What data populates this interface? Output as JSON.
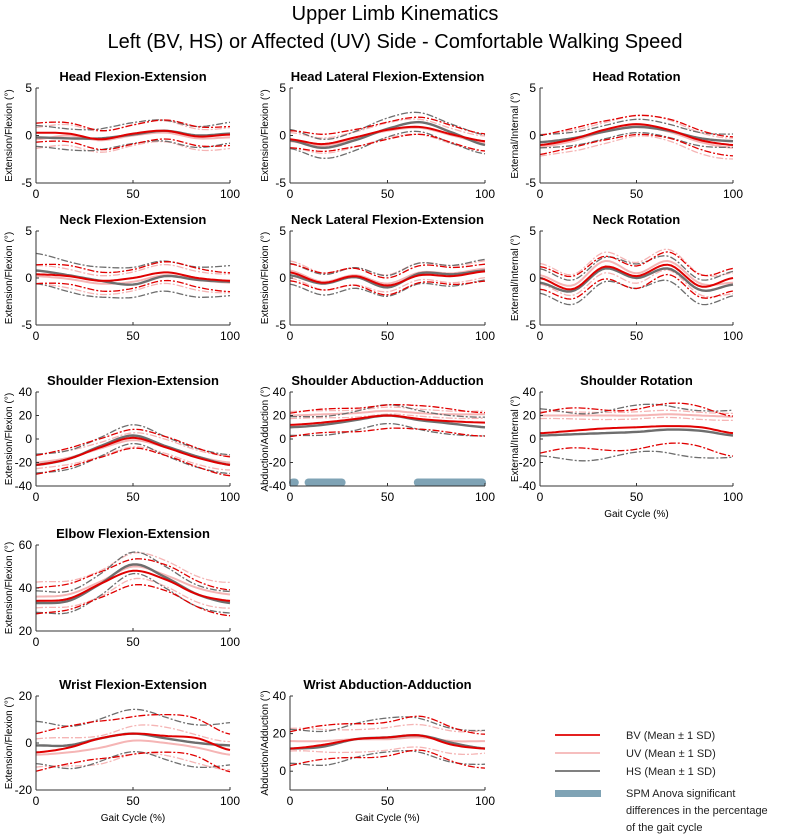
{
  "title": "Upper Limb Kinematics",
  "subtitle": "Left (BV, HS) or Affected (UV) Side - Comfortable Walking Speed",
  "colors": {
    "BV": "#e00000",
    "UV": "#f5b5b5",
    "HS": "#6e6e6e",
    "SPM": "#7fa3b5"
  },
  "legend": [
    {
      "key": "BV",
      "label": "BV (Mean ± 1 SD)"
    },
    {
      "key": "UV",
      "label": "UV (Mean ± 1 SD)"
    },
    {
      "key": "HS",
      "label": "HS (Mean ± 1 SD)"
    },
    {
      "key": "SPM",
      "label_lines": [
        "SPM Anova significant",
        "differences in the percentage",
        "of the gait cycle"
      ]
    }
  ],
  "chart_data": [
    {
      "type": "line",
      "title": "Head Flexion-Extension",
      "ylabel": "Extension/Flexion (°)",
      "xlabel": "",
      "xlim": [
        0,
        100
      ],
      "ylim": [
        -5,
        5
      ],
      "yticks": [
        -5,
        0,
        5
      ],
      "xticks": [
        0,
        50,
        100
      ],
      "x": [
        0,
        16.7,
        33.3,
        50,
        66.7,
        83.3,
        100
      ],
      "series": [
        {
          "group": "BV",
          "mean": [
            0.3,
            0.2,
            -0.4,
            0.2,
            0.5,
            -0.1,
            0.1
          ],
          "sd": 1.0
        },
        {
          "group": "UV",
          "mean": [
            -0.4,
            0,
            -0.5,
            0,
            0.3,
            -0.3,
            -0.2
          ],
          "sd": 1.1
        },
        {
          "group": "HS",
          "mean": [
            -0.2,
            -0.3,
            -0.3,
            0.1,
            0.5,
            0,
            0.2
          ],
          "sd": 1.1
        }
      ],
      "spm": []
    },
    {
      "type": "line",
      "title": "Head Lateral Flexion-Extension",
      "ylabel": "Extension/Flexion (°)",
      "xlabel": "",
      "xlim": [
        0,
        100
      ],
      "ylim": [
        -5,
        5
      ],
      "yticks": [
        -5,
        0,
        5
      ],
      "xticks": [
        0,
        50,
        100
      ],
      "x": [
        0,
        16.7,
        33.3,
        50,
        66.7,
        83.3,
        100
      ],
      "series": [
        {
          "group": "BV",
          "mean": [
            -0.4,
            -0.9,
            -0.2,
            0.6,
            0.9,
            0.1,
            -0.6
          ],
          "sd": 0.9
        },
        {
          "group": "UV",
          "mean": [
            -0.6,
            -1.1,
            -0.3,
            0.5,
            0.8,
            0,
            -0.8
          ],
          "sd": 0.8
        },
        {
          "group": "HS",
          "mean": [
            -0.5,
            -1.3,
            -0.5,
            0.7,
            1.4,
            0.3,
            -1
          ],
          "sd": 1.0
        }
      ],
      "spm": []
    },
    {
      "type": "line",
      "title": "Head Rotation",
      "ylabel": "External/Internal (°)",
      "xlabel": "",
      "xlim": [
        0,
        100
      ],
      "ylim": [
        -5,
        5
      ],
      "yticks": [
        -5,
        0,
        5
      ],
      "xticks": [
        0,
        50,
        100
      ],
      "x": [
        0,
        16.7,
        33.3,
        50,
        66.7,
        83.3,
        100
      ],
      "series": [
        {
          "group": "BV",
          "mean": [
            -1,
            -0.4,
            0.6,
            1.2,
            0.6,
            -0.5,
            -1
          ],
          "sd": 1.0
        },
        {
          "group": "UV",
          "mean": [
            -1.2,
            -0.6,
            0.4,
            1,
            0.4,
            -0.7,
            -1.3
          ],
          "sd": 1.1
        },
        {
          "group": "HS",
          "mean": [
            -0.7,
            -0.3,
            0.4,
            0.9,
            0.5,
            -0.3,
            -0.6
          ],
          "sd": 0.7
        }
      ],
      "spm": []
    },
    {
      "type": "line",
      "title": "Neck Flexion-Extension",
      "ylabel": "Extension/Flexion (°)",
      "xlabel": "",
      "xlim": [
        0,
        100
      ],
      "ylim": [
        -5,
        5
      ],
      "yticks": [
        -5,
        0,
        5
      ],
      "xticks": [
        0,
        50,
        100
      ],
      "x": [
        0,
        16.7,
        33.3,
        50,
        66.7,
        83.3,
        100
      ],
      "series": [
        {
          "group": "BV",
          "mean": [
            0.4,
            0.2,
            -0.3,
            0,
            0.6,
            0,
            -0.3
          ],
          "sd": 1.0
        },
        {
          "group": "UV",
          "mean": [
            0.2,
            -0.1,
            -0.6,
            -0.4,
            0.3,
            -0.2,
            -0.5
          ],
          "sd": 1.0
        },
        {
          "group": "HS",
          "mean": [
            0.8,
            0.3,
            -0.3,
            -0.7,
            0.2,
            -0.2,
            -0.4
          ],
          "sd": 1.6
        }
      ],
      "spm": []
    },
    {
      "type": "line",
      "title": "Neck Lateral Flexion-Extension",
      "ylabel": "Extension/Flexion (°)",
      "xlabel": "",
      "xlim": [
        0,
        100
      ],
      "ylim": [
        -5,
        5
      ],
      "yticks": [
        -5,
        0,
        5
      ],
      "xticks": [
        0,
        50,
        100
      ],
      "x": [
        0,
        16.7,
        33.3,
        50,
        66.7,
        83.3,
        100
      ],
      "series": [
        {
          "group": "BV",
          "mean": [
            0.6,
            -0.5,
            0.2,
            -0.8,
            0.3,
            0.2,
            0.7
          ],
          "sd": 0.9
        },
        {
          "group": "UV",
          "mean": [
            0.8,
            -0.4,
            0.3,
            -0.6,
            0.6,
            0.5,
            1
          ],
          "sd": 0.9
        },
        {
          "group": "HS",
          "mean": [
            0.3,
            -0.6,
            0.1,
            -1,
            0.5,
            0.4,
            0.8
          ],
          "sd": 1.1
        }
      ],
      "spm": []
    },
    {
      "type": "line",
      "title": "Neck Rotation",
      "ylabel": "External/Internal (°)",
      "xlabel": "",
      "xlim": [
        0,
        100
      ],
      "ylim": [
        -5,
        5
      ],
      "yticks": [
        -5,
        0,
        5
      ],
      "xticks": [
        0,
        50,
        100
      ],
      "x": [
        0,
        16.7,
        33.3,
        50,
        66.7,
        83.3,
        100
      ],
      "series": [
        {
          "group": "BV",
          "mean": [
            0,
            -1.2,
            1.2,
            0.2,
            1.4,
            -0.9,
            0
          ],
          "sd": 1.2
        },
        {
          "group": "UV",
          "mean": [
            0.3,
            -0.8,
            1.8,
            0.5,
            1.8,
            -0.6,
            -0.5
          ],
          "sd": 1.1
        },
        {
          "group": "HS",
          "mean": [
            -0.5,
            -1.4,
            1,
            0,
            1,
            -1.3,
            -0.7
          ],
          "sd": 1.3
        }
      ],
      "spm": []
    },
    {
      "type": "line",
      "title": "Shoulder Flexion-Extension",
      "ylabel": "Extension/Flexion (°)",
      "xlabel": "",
      "xlim": [
        0,
        100
      ],
      "ylim": [
        -40,
        40
      ],
      "yticks": [
        -40,
        -20,
        0,
        20,
        40
      ],
      "xticks": [
        0,
        50,
        100
      ],
      "x": [
        0,
        16.7,
        33.3,
        50,
        66.7,
        83.3,
        100
      ],
      "series": [
        {
          "group": "BV",
          "mean": [
            -22,
            -17,
            -7,
            1,
            -7,
            -16,
            -22
          ],
          "sd": 8
        },
        {
          "group": "UV",
          "mean": [
            -20,
            -16,
            -8,
            -1,
            -7,
            -15,
            -20
          ],
          "sd": 6
        },
        {
          "group": "HS",
          "mean": [
            -22,
            -17,
            -6,
            3,
            -6,
            -15,
            -22
          ],
          "sd": 8
        }
      ],
      "spm": []
    },
    {
      "type": "line",
      "title": "Shoulder Abduction-Adduction",
      "ylabel": "Abduction/Adduction (°)",
      "xlabel": "",
      "xlim": [
        0,
        100
      ],
      "ylim": [
        -40,
        40
      ],
      "yticks": [
        -40,
        -20,
        0,
        20,
        40
      ],
      "xticks": [
        0,
        50,
        100
      ],
      "x": [
        0,
        16.7,
        33.3,
        50,
        66.7,
        83.3,
        100
      ],
      "series": [
        {
          "group": "BV",
          "mean": [
            12,
            14,
            17,
            20,
            17,
            15,
            14
          ],
          "sd": 10
        },
        {
          "group": "UV",
          "mean": [
            20,
            21,
            22,
            24,
            22,
            21,
            21
          ],
          "sd": 3
        },
        {
          "group": "HS",
          "mean": [
            10,
            12,
            16,
            20,
            16,
            13,
            10
          ],
          "sd": 8
        }
      ],
      "spm": [
        [
          0,
          4
        ],
        [
          8,
          28
        ],
        [
          64,
          100
        ]
      ]
    },
    {
      "type": "line",
      "title": "Shoulder Rotation",
      "ylabel": "External/Internal (°)",
      "xlabel": "Gait Cycle (%)",
      "xlim": [
        0,
        100
      ],
      "ylim": [
        -40,
        40
      ],
      "yticks": [
        -40,
        -20,
        0,
        20,
        40
      ],
      "xticks": [
        0,
        50,
        100
      ],
      "x": [
        0,
        16.7,
        33.3,
        50,
        66.7,
        83.3,
        100
      ],
      "series": [
        {
          "group": "BV",
          "mean": [
            5,
            7,
            9,
            10,
            11,
            10,
            5
          ],
          "sd": 17
        },
        {
          "group": "UV",
          "mean": [
            20,
            20,
            20,
            20,
            21,
            20,
            19
          ],
          "sd": 3
        },
        {
          "group": "HS",
          "mean": [
            3,
            4,
            5,
            6,
            8,
            7,
            3
          ],
          "sd": 20
        }
      ],
      "spm": []
    },
    {
      "type": "line",
      "title": "Elbow Flexion-Extension",
      "ylabel": "Extension/Flexion (°)",
      "xlabel": "",
      "xlim": [
        0,
        100
      ],
      "ylim": [
        20,
        60
      ],
      "yticks": [
        20,
        40,
        60
      ],
      "xticks": [
        0,
        50,
        100
      ],
      "x": [
        0,
        16.7,
        33.3,
        50,
        66.7,
        83.3,
        100
      ],
      "series": [
        {
          "group": "BV",
          "mean": [
            34,
            35,
            42,
            48,
            44,
            37,
            34
          ],
          "sd": 6
        },
        {
          "group": "UV",
          "mean": [
            36,
            37,
            43,
            50,
            46,
            40,
            37
          ],
          "sd": 6
        },
        {
          "group": "HS",
          "mean": [
            33,
            34,
            42,
            51,
            45,
            37,
            33
          ],
          "sd": 5
        }
      ],
      "spm": []
    },
    {
      "type": "line",
      "title": "Wrist Flexion-Extension",
      "ylabel": "Extension/Flexion (°)",
      "xlabel": "Gait Cycle (%)",
      "xlim": [
        0,
        100
      ],
      "ylim": [
        -20,
        20
      ],
      "yticks": [
        -20,
        0,
        20
      ],
      "xticks": [
        0,
        50,
        100
      ],
      "x": [
        0,
        16.7,
        33.3,
        50,
        66.7,
        83.3,
        100
      ],
      "series": [
        {
          "group": "BV",
          "mean": [
            -4,
            -2,
            2,
            4,
            3,
            2,
            -3
          ],
          "sd": 8
        },
        {
          "group": "UV",
          "mean": [
            -5,
            -4,
            -2,
            1,
            0,
            -2,
            -5
          ],
          "sd": 6
        },
        {
          "group": "HS",
          "mean": [
            -1,
            -1,
            2,
            4,
            2,
            0,
            -1
          ],
          "sd": 9
        }
      ],
      "spm": []
    },
    {
      "type": "line",
      "title": "Wrist Abduction-Adduction",
      "ylabel": "Abduction/Adduction (°)",
      "xlabel": "Gait Cycle (%)",
      "xlim": [
        0,
        100
      ],
      "ylim": [
        -10,
        40
      ],
      "yticks": [
        0,
        20,
        40
      ],
      "xticks": [
        0,
        50,
        100
      ],
      "x": [
        0,
        16.7,
        33.3,
        50,
        66.7,
        83.3,
        100
      ],
      "series": [
        {
          "group": "BV",
          "mean": [
            12,
            14,
            17,
            18,
            19,
            14,
            12
          ],
          "sd": 9
        },
        {
          "group": "UV",
          "mean": [
            16,
            16,
            17,
            17,
            18,
            16,
            16
          ],
          "sd": 6
        },
        {
          "group": "HS",
          "mean": [
            12,
            13,
            17,
            18,
            19,
            15,
            12
          ],
          "sd": 9
        }
      ],
      "spm": []
    }
  ]
}
